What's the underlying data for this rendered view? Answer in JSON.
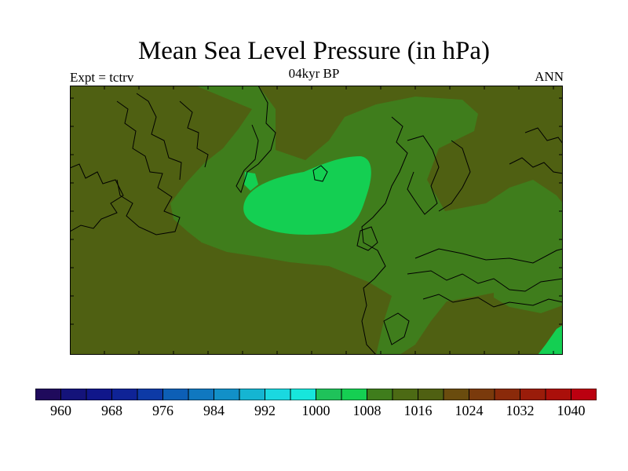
{
  "header": {
    "title": "Mean Sea Level Pressure (in hPa)",
    "center_subtitle": "04kyr BP",
    "left_subtitle": "Expt = tctrv",
    "right_subtitle": "ANN"
  },
  "legend": {
    "colors": [
      "#1f0a5c",
      "#14137a",
      "#10168a",
      "#0f2396",
      "#0d3aa6",
      "#0d5fb6",
      "#1078c0",
      "#1290c8",
      "#15b5d2",
      "#1ad8e0",
      "#17e6dc",
      "#1fc25a",
      "#15cf52",
      "#3f7d1c",
      "#4c6a14",
      "#4f6012",
      "#6a4c0e",
      "#7a3a0c",
      "#8a2a0a",
      "#9a1c0a",
      "#aa0f0a",
      "#bb0010"
    ],
    "labels": [
      "960",
      "968",
      "976",
      "984",
      "992",
      "1000",
      "1008",
      "1016",
      "1024",
      "1032",
      "1040"
    ]
  },
  "map_colors": {
    "land_high": "#4f6012",
    "mid": "#3f7d1c",
    "low": "#14cf52",
    "coast": "#000000"
  }
}
